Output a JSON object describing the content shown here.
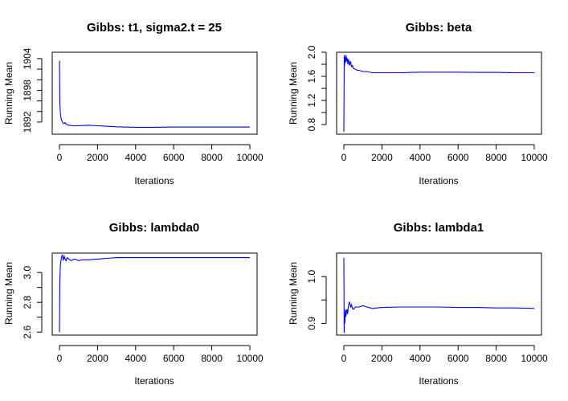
{
  "chart_data": [
    {
      "type": "line",
      "title": "Gibbs: t1, sigma2.t = 25",
      "xlabel": "Iterations",
      "ylabel": "Running Mean",
      "xlim": [
        0,
        10000
      ],
      "ylim": [
        1889.7,
        1905.2
      ],
      "xticks": [
        0,
        2000,
        4000,
        6000,
        8000,
        10000
      ],
      "yticks": [
        1892,
        1898,
        1904
      ],
      "yticks_minor": [
        1894,
        1896,
        1900,
        1902
      ],
      "color": "#0000ff",
      "series": [
        {
          "x": [
            1,
            20,
            50,
            80,
            120,
            160,
            200,
            250,
            300,
            350,
            400,
            500,
            700,
            1000,
            1500,
            2000,
            3000,
            4000,
            5000,
            6000,
            7000,
            8000,
            9000,
            10000
          ],
          "y": [
            1903.6,
            1895.5,
            1893.5,
            1892.8,
            1892.3,
            1892.0,
            1891.8,
            1891.7,
            1891.9,
            1891.6,
            1891.5,
            1891.4,
            1891.3,
            1891.3,
            1891.4,
            1891.3,
            1891.1,
            1891.0,
            1891.0,
            1891.05,
            1891.05,
            1891.05,
            1891.05,
            1891.05
          ]
        }
      ]
    },
    {
      "type": "line",
      "title": "Gibbs: beta",
      "xlabel": "Iterations",
      "ylabel": "Running Mean",
      "xlim": [
        0,
        10000
      ],
      "ylim": [
        0.64,
        2.0
      ],
      "xticks": [
        0,
        2000,
        4000,
        6000,
        8000,
        10000
      ],
      "yticks": [
        0.8,
        1.2,
        1.6,
        2.0
      ],
      "yticks_minor": [
        1.0,
        1.4,
        1.8
      ],
      "color": "#0000ff",
      "series": [
        {
          "x": [
            1,
            20,
            40,
            60,
            90,
            120,
            150,
            180,
            210,
            250,
            300,
            350,
            400,
            450,
            500,
            600,
            700,
            800,
            1000,
            1200,
            1500,
            2000,
            3000,
            4000,
            5000,
            6000,
            7000,
            8000,
            9000,
            10000
          ],
          "y": [
            0.68,
            1.95,
            1.78,
            1.92,
            1.83,
            1.95,
            1.85,
            1.9,
            1.8,
            1.88,
            1.78,
            1.85,
            1.76,
            1.78,
            1.73,
            1.72,
            1.7,
            1.7,
            1.68,
            1.68,
            1.66,
            1.66,
            1.66,
            1.67,
            1.67,
            1.67,
            1.665,
            1.665,
            1.66,
            1.66
          ]
        }
      ]
    },
    {
      "type": "line",
      "title": "Gibbs: lambda0",
      "xlabel": "Iterations",
      "ylabel": "Running Mean",
      "xlim": [
        0,
        10000
      ],
      "ylim": [
        2.58,
        3.13
      ],
      "xticks": [
        0,
        2000,
        4000,
        6000,
        8000,
        10000
      ],
      "yticks": [
        2.6,
        2.8,
        3.0
      ],
      "yticks_minor": [
        2.7,
        2.9
      ],
      "color": "#0000ff",
      "series": [
        {
          "x": [
            1,
            20,
            50,
            100,
            150,
            200,
            250,
            300,
            350,
            400,
            500,
            600,
            800,
            1000,
            1200,
            1500,
            2000,
            2500,
            3000,
            4000,
            5000,
            6000,
            7000,
            8000,
            9000,
            10000
          ],
          "y": [
            2.6,
            2.95,
            3.05,
            3.1,
            3.12,
            3.08,
            3.11,
            3.09,
            3.08,
            3.1,
            3.09,
            3.08,
            3.09,
            3.08,
            3.085,
            3.085,
            3.09,
            3.095,
            3.1,
            3.1,
            3.1,
            3.1,
            3.1,
            3.1,
            3.1,
            3.1
          ]
        }
      ]
    },
    {
      "type": "line",
      "title": "Gibbs: lambda1",
      "xlabel": "Iterations",
      "ylabel": "Running Mean",
      "xlim": [
        0,
        10000
      ],
      "ylim": [
        0.875,
        1.05
      ],
      "xticks": [
        0,
        2000,
        4000,
        6000,
        8000,
        10000
      ],
      "yticks": [
        0.9,
        1.0
      ],
      "yticks_minor": [
        0.95
      ],
      "color": "#0000ff",
      "series": [
        {
          "x": [
            1,
            15,
            30,
            50,
            80,
            110,
            140,
            170,
            200,
            250,
            300,
            350,
            400,
            450,
            500,
            600,
            800,
            1000,
            1200,
            1500,
            2000,
            3000,
            4000,
            5000,
            6000,
            7000,
            8000,
            9000,
            10000
          ],
          "y": [
            1.04,
            0.88,
            0.92,
            0.9,
            0.93,
            0.915,
            0.925,
            0.93,
            0.92,
            0.94,
            0.945,
            0.935,
            0.94,
            0.932,
            0.93,
            0.935,
            0.935,
            0.938,
            0.935,
            0.932,
            0.934,
            0.935,
            0.935,
            0.935,
            0.934,
            0.934,
            0.933,
            0.933,
            0.932
          ]
        }
      ]
    }
  ]
}
